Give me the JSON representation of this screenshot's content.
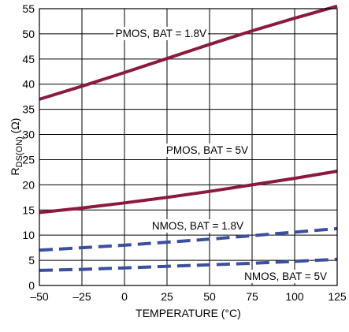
{
  "chart_data": {
    "type": "line",
    "xlabel": "TEMPERATURE (°C)",
    "ylabel": {
      "main": "R",
      "sub": "DS(ON)",
      "unit": " (Ω)"
    },
    "xlim": [
      -50,
      125
    ],
    "ylim": [
      0,
      55
    ],
    "x_ticks": [
      "–50",
      "–25",
      "0",
      "25",
      "50",
      "75",
      "100",
      "125"
    ],
    "x_tick_values": [
      -50,
      -25,
      0,
      25,
      50,
      75,
      100,
      125
    ],
    "y_ticks": [
      "0",
      "5",
      "10",
      "15",
      "20",
      "25",
      "30",
      "35",
      "40",
      "45",
      "50",
      "55"
    ],
    "y_tick_values": [
      0,
      5,
      10,
      15,
      20,
      25,
      30,
      35,
      40,
      45,
      50,
      55
    ],
    "grid": true,
    "series": [
      {
        "name": "PMOS, BAT = 1.8V",
        "color": "#8b1a3b",
        "style": "solid",
        "x": [
          -50,
          -25,
          0,
          25,
          50,
          75,
          100,
          125
        ],
        "values": [
          37.0,
          39.6,
          42.3,
          45.1,
          47.9,
          50.6,
          53.1,
          55.5
        ]
      },
      {
        "name": "PMOS, BAT = 5V",
        "color": "#8b1a3b",
        "style": "solid",
        "x": [
          -50,
          -25,
          0,
          25,
          50,
          75,
          100,
          125
        ],
        "values": [
          14.5,
          15.4,
          16.4,
          17.5,
          18.7,
          20.0,
          21.3,
          22.7
        ]
      },
      {
        "name": "NMOS, BAT = 1.8V",
        "color": "#3c4f9e",
        "style": "dashed",
        "x": [
          -50,
          -25,
          0,
          25,
          50,
          75,
          100,
          125
        ],
        "values": [
          7.0,
          7.5,
          8.0,
          8.6,
          9.2,
          9.9,
          10.6,
          11.3
        ]
      },
      {
        "name": "NMOS, BAT = 5V",
        "color": "#3c4f9e",
        "style": "dashed",
        "x": [
          -50,
          -25,
          0,
          25,
          50,
          75,
          100,
          125
        ],
        "values": [
          3.0,
          3.2,
          3.5,
          3.8,
          4.1,
          4.4,
          4.8,
          5.2
        ]
      }
    ]
  }
}
